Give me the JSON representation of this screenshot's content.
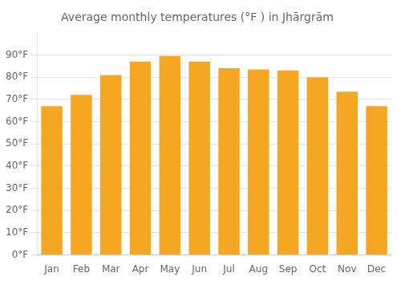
{
  "chart_data": {
    "type": "bar",
    "title": "Average monthly temperatures (°F ) in Jhārgrām",
    "categories": [
      "Jan",
      "Feb",
      "Mar",
      "Apr",
      "May",
      "Jun",
      "Jul",
      "Aug",
      "Sep",
      "Oct",
      "Nov",
      "Dec"
    ],
    "values": [
      67,
      72,
      81,
      87,
      89.5,
      87,
      84,
      83.5,
      83,
      80,
      73.5,
      67
    ],
    "color": "#F5A623",
    "ylim": [
      0,
      100
    ],
    "yticks": [
      {
        "value": 0,
        "label": "0°F"
      },
      {
        "value": 10,
        "label": "10°F"
      },
      {
        "value": 20,
        "label": "20°F"
      },
      {
        "value": 30,
        "label": "30°F"
      },
      {
        "value": 40,
        "label": "40°F"
      },
      {
        "value": 50,
        "label": "50°F"
      },
      {
        "value": 60,
        "label": "60°F"
      },
      {
        "value": 70,
        "label": "70°F"
      },
      {
        "value": 80,
        "label": "80°F"
      },
      {
        "value": 90,
        "label": "90°F"
      }
    ],
    "grid": true
  }
}
